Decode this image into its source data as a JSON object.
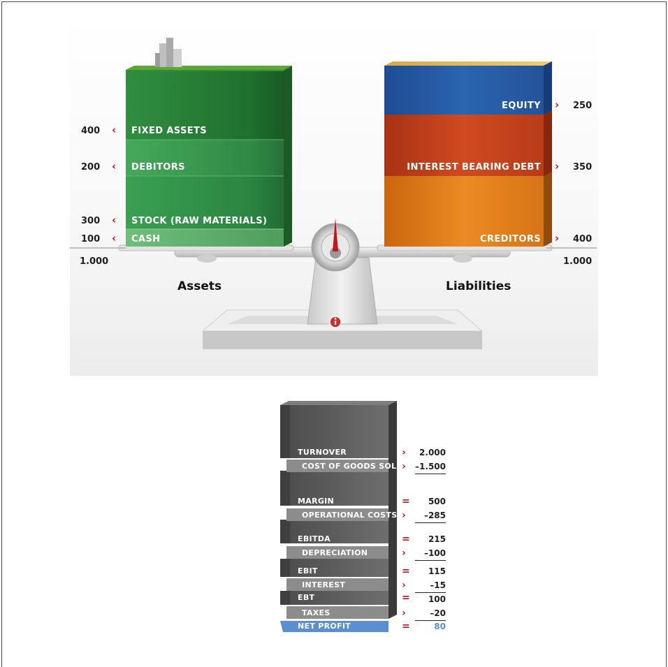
{
  "balance_sheet": {
    "assets_title": "Assets",
    "liabilities_title": "Liabilities",
    "assets": [
      {
        "label": "FIXED ASSETS",
        "value": "400"
      },
      {
        "label": "DEBITORS",
        "value": "200"
      },
      {
        "label": "STOCK (RAW MATERIALS)",
        "value": "300"
      },
      {
        "label": "CASH",
        "value": "100"
      }
    ],
    "assets_total": "1.000",
    "liabilities": [
      {
        "label": "EQUITY",
        "value": "250"
      },
      {
        "label": "INTEREST BEARING DEBT",
        "value": "350"
      },
      {
        "label": "CREDITORS",
        "value": "400"
      }
    ],
    "liabilities_total": "1.000",
    "colors": {
      "assets_green": "#2f8f3f",
      "equity_blue": "#2b5fa8",
      "debt_red": "#c9421f",
      "creditors_orange": "#e07b1a",
      "arrow_red": "#c4161c"
    },
    "icons": {
      "info": "info-icon",
      "left_arrow": "‹",
      "right_arrow": "›"
    }
  },
  "income_statement": {
    "rows": [
      {
        "label": "TURNOVER",
        "op": "›",
        "value": "2.000"
      },
      {
        "label": "COST OF GOODS SOLD",
        "op": "›",
        "value": "–1.500"
      },
      {
        "label": "MARGIN",
        "op": "=",
        "value": "500"
      },
      {
        "label": "OPERATIONAL COSTS",
        "op": "›",
        "value": "–285"
      },
      {
        "label": "EBITDA",
        "op": "=",
        "value": "215"
      },
      {
        "label": "DEPRECIATION",
        "op": "›",
        "value": "–100"
      },
      {
        "label": "EBIT",
        "op": "=",
        "value": "115"
      },
      {
        "label": "INTEREST",
        "op": "›",
        "value": "–15"
      },
      {
        "label": "EBT",
        "op": "=",
        "value": "100"
      },
      {
        "label": "TAXES",
        "op": "›",
        "value": "–20"
      },
      {
        "label": "NET PROFIT",
        "op": "=",
        "value": "80"
      }
    ],
    "colors": {
      "net_profit_blue": "#5b8fd1",
      "step_grey": "#5a5a5a"
    }
  }
}
